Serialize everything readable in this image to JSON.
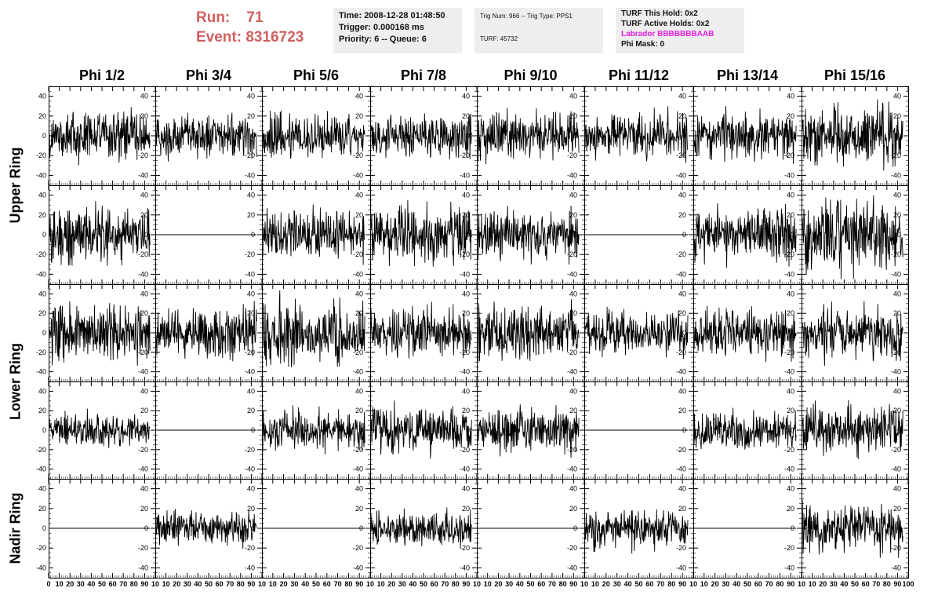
{
  "header": {
    "run_label": "Run:",
    "run_value": "71",
    "event_label": "Event:",
    "event_value": "8316723",
    "time": "Time: 2008-12-28 01:48:50",
    "trigger": "Trigger: 0.000168 ms",
    "priority": "Priority: 6 -- Queue: 6",
    "trig_num": "Trig Num: 966 -- Trig Type: PPS1",
    "turf": "TURF: 45732",
    "turf_this_hold": "TURF This Hold: 0x2",
    "turf_active_holds": "TURF Active Holds: 0x2",
    "labrador": "Labrador BBBBBBBAAB",
    "phi_mask": "Phi Mask: 0"
  },
  "colors": {
    "run_text": "#d06060",
    "labrador_text": "#e020e0",
    "info_bg": "#eeeeee",
    "trace": "#000000"
  },
  "chart_data": {
    "type": "line",
    "columns": [
      "Phi 1/2",
      "Phi 3/4",
      "Phi 5/6",
      "Phi 7/8",
      "Phi 9/10",
      "Phi 11/12",
      "Phi 13/14",
      "Phi 15/16"
    ],
    "ring_labels": [
      {
        "label": "Upper Ring",
        "rows": [
          0,
          1
        ]
      },
      {
        "label": "Lower Ring",
        "rows": [
          2,
          3
        ]
      },
      {
        "label": "Nadir Ring",
        "rows": [
          4
        ]
      }
    ],
    "xlim": [
      0,
      100
    ],
    "ylim": [
      -50,
      50
    ],
    "x_ticks": [
      0,
      10,
      20,
      30,
      40,
      50,
      60,
      70,
      80,
      90,
      100
    ],
    "x_tick_labels_first": [
      "0",
      "10",
      "20",
      "30",
      "40",
      "50",
      "60",
      "70",
      "80",
      "90",
      "10"
    ],
    "x_tick_labels_middle": [
      "10",
      "20",
      "30",
      "40",
      "50",
      "60",
      "70",
      "80",
      "90",
      "10"
    ],
    "x_tick_labels_last": [
      "10",
      "20",
      "30",
      "40",
      "50",
      "60",
      "70",
      "80",
      "90",
      "100"
    ],
    "y_ticks": [
      40,
      20,
      0,
      -20,
      -40
    ],
    "y_tick_labels": [
      "40",
      "20",
      "0",
      "-20",
      "-40"
    ],
    "samples": 260,
    "x_span": [
      0,
      95
    ],
    "amplitude": [
      [
        18,
        15,
        17,
        16,
        17,
        16,
        17,
        20
      ],
      [
        20,
        0,
        18,
        20,
        17,
        0,
        19,
        25
      ],
      [
        22,
        18,
        22,
        17,
        20,
        15,
        19,
        18
      ],
      [
        12,
        0,
        15,
        17,
        16,
        0,
        15,
        17
      ],
      [
        0,
        12,
        0,
        12,
        0,
        14,
        0,
        17
      ]
    ]
  }
}
